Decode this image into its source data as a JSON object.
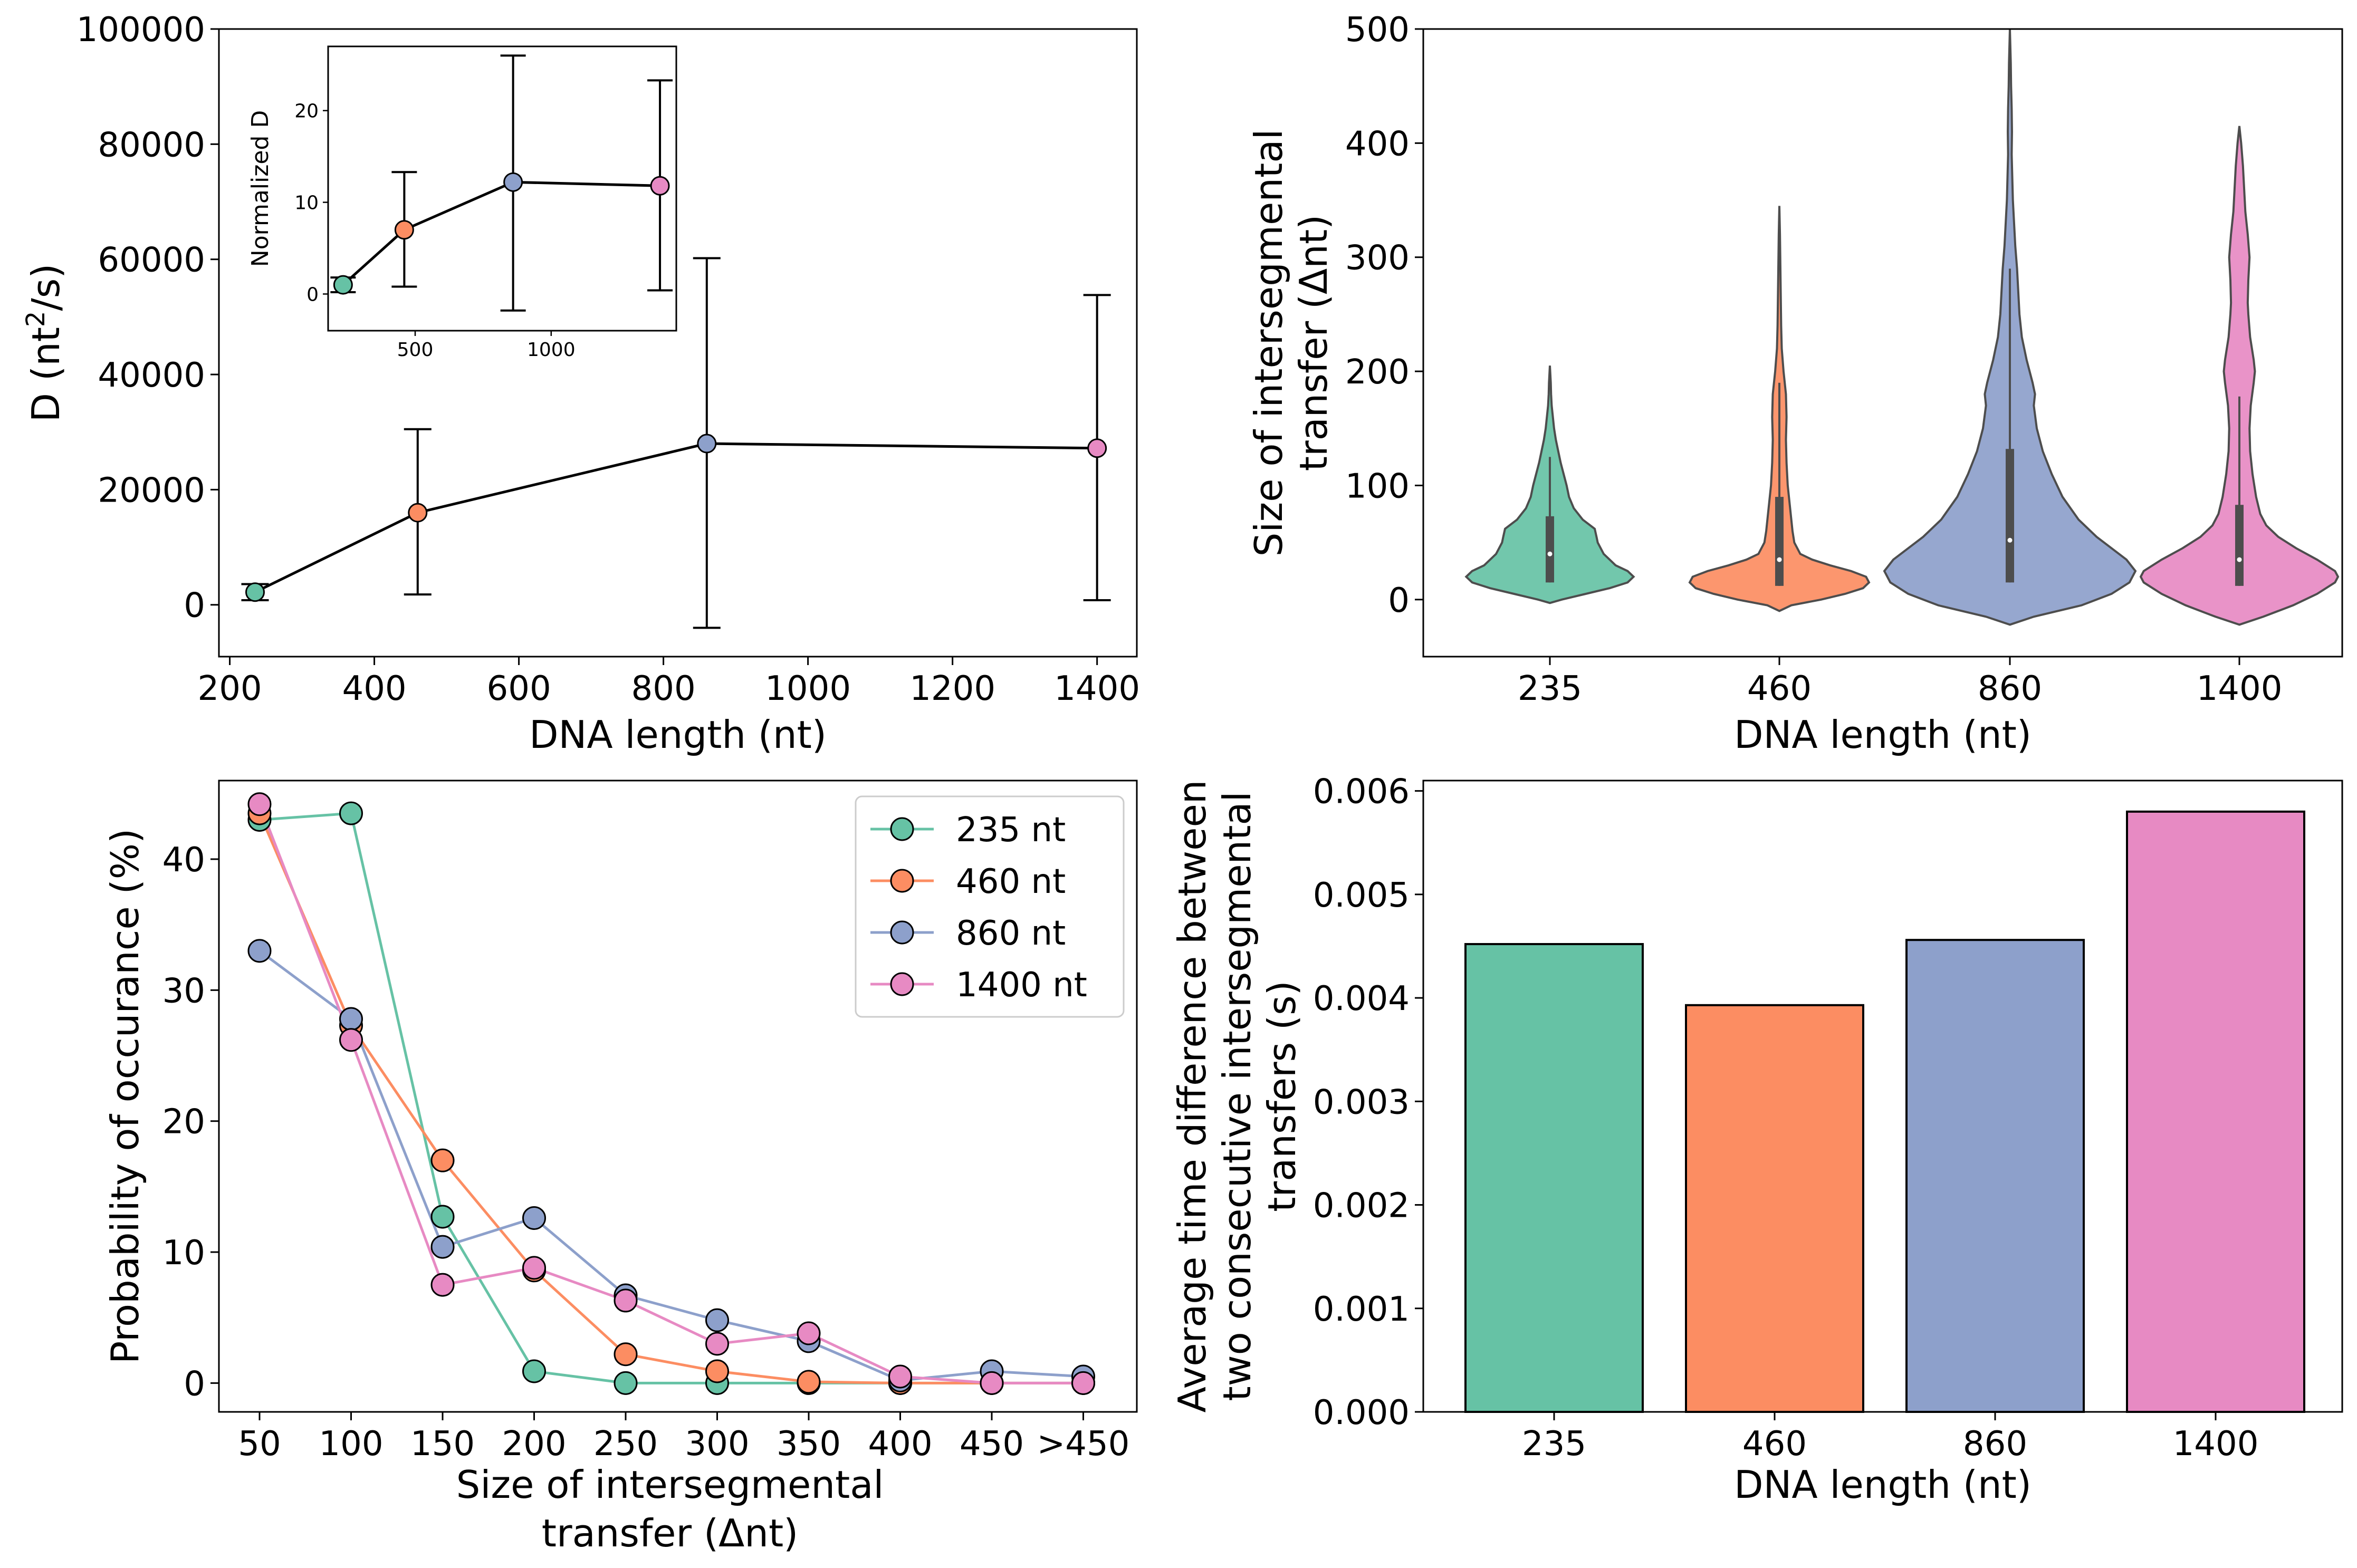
{
  "colors": {
    "c235": "#66c2a5",
    "c460": "#fc8d62",
    "c860": "#8da0cb",
    "c1400": "#e78ac3"
  },
  "chart_data": [
    {
      "id": "diffusion",
      "type": "line",
      "xlabel": "DNA length (nt)",
      "ylabel_main": "D (nt",
      "ylabel_sup": "2",
      "ylabel_tail": "/s)",
      "xlim": [
        185,
        1455
      ],
      "ylim": [
        -9000,
        100000
      ],
      "xticks": [
        200,
        400,
        600,
        800,
        1000,
        1200,
        1400
      ],
      "yticks": [
        0,
        20000,
        40000,
        60000,
        80000,
        100000
      ],
      "x": [
        235,
        460,
        860,
        1400
      ],
      "y": [
        2200,
        16000,
        28000,
        27200
      ],
      "err_low": [
        800,
        1800,
        -4000,
        800
      ],
      "err_high": [
        3600,
        30500,
        60200,
        53800
      ],
      "point_colors": [
        "#66c2a5",
        "#fc8d62",
        "#8da0cb",
        "#e78ac3"
      ],
      "inset": {
        "type": "line",
        "ylabel": "Normalized D",
        "xlim": [
          180,
          1460
        ],
        "ylim": [
          -4,
          27
        ],
        "xticks": [
          500,
          1000
        ],
        "yticks": [
          0,
          10,
          20
        ],
        "x": [
          235,
          460,
          860,
          1400
        ],
        "y": [
          1.0,
          7.0,
          12.2,
          11.8
        ],
        "err_low": [
          0.2,
          0.8,
          -1.8,
          0.4
        ],
        "err_high": [
          1.8,
          13.3,
          26.0,
          23.3
        ]
      }
    },
    {
      "id": "violin",
      "type": "violin",
      "xlabel": "DNA length (nt)",
      "ylabel_line1": "Size of intersegmental",
      "ylabel_line2": "transfer (Δnt)",
      "ylim": [
        -50,
        500
      ],
      "yticks": [
        0,
        100,
        200,
        300,
        400,
        500
      ],
      "categories": [
        "235",
        "460",
        "860",
        "1400"
      ],
      "series": [
        {
          "min": -3,
          "max": 205,
          "q1": 15,
          "median": 40,
          "q3": 73,
          "whisker_high": 125,
          "density": [
            [
              -3,
              0
            ],
            [
              0,
              20
            ],
            [
              5,
              60
            ],
            [
              10,
              100
            ],
            [
              15,
              130
            ],
            [
              20,
              140
            ],
            [
              25,
              130
            ],
            [
              30,
              110
            ],
            [
              40,
              90
            ],
            [
              50,
              80
            ],
            [
              55,
              78
            ],
            [
              62,
              75
            ],
            [
              70,
              55
            ],
            [
              80,
              40
            ],
            [
              90,
              32
            ],
            [
              100,
              28
            ],
            [
              110,
              23
            ],
            [
              120,
              18
            ],
            [
              130,
              14
            ],
            [
              140,
              10
            ],
            [
              150,
              7
            ],
            [
              160,
              5
            ],
            [
              170,
              3
            ],
            [
              180,
              2
            ],
            [
              190,
              1.5
            ],
            [
              205,
              0
            ]
          ]
        },
        {
          "min": -10,
          "max": 345,
          "q1": 12,
          "median": 35,
          "q3": 90,
          "whisker_high": 190,
          "density": [
            [
              -10,
              0
            ],
            [
              -5,
              20
            ],
            [
              0,
              70
            ],
            [
              5,
              110
            ],
            [
              10,
              140
            ],
            [
              15,
              150
            ],
            [
              20,
              145
            ],
            [
              25,
              120
            ],
            [
              30,
              85
            ],
            [
              35,
              55
            ],
            [
              40,
              35
            ],
            [
              50,
              25
            ],
            [
              60,
              22
            ],
            [
              80,
              18
            ],
            [
              100,
              14
            ],
            [
              120,
              12
            ],
            [
              140,
              11
            ],
            [
              160,
              12
            ],
            [
              180,
              11
            ],
            [
              200,
              7
            ],
            [
              220,
              4
            ],
            [
              240,
              3
            ],
            [
              260,
              2.5
            ],
            [
              280,
              2
            ],
            [
              300,
              1.5
            ],
            [
              320,
              1
            ],
            [
              345,
              0
            ]
          ]
        },
        {
          "min": -22,
          "max": 500,
          "q1": 15,
          "median": 52,
          "q3": 132,
          "whisker_high": 290,
          "density": [
            [
              -22,
              0
            ],
            [
              -15,
              40
            ],
            [
              -5,
              120
            ],
            [
              5,
              170
            ],
            [
              15,
              200
            ],
            [
              25,
              210
            ],
            [
              35,
              195
            ],
            [
              45,
              170
            ],
            [
              55,
              145
            ],
            [
              70,
              115
            ],
            [
              90,
              88
            ],
            [
              110,
              70
            ],
            [
              130,
              55
            ],
            [
              150,
              45
            ],
            [
              170,
              40
            ],
            [
              180,
              42
            ],
            [
              190,
              38
            ],
            [
              210,
              28
            ],
            [
              230,
              20
            ],
            [
              250,
              16
            ],
            [
              270,
              14
            ],
            [
              290,
              12
            ],
            [
              310,
              9
            ],
            [
              330,
              7
            ],
            [
              350,
              5
            ],
            [
              370,
              4
            ],
            [
              390,
              3
            ],
            [
              410,
              3.5
            ],
            [
              430,
              3
            ],
            [
              450,
              2
            ],
            [
              470,
              1.5
            ],
            [
              500,
              0
            ]
          ]
        },
        {
          "min": -22,
          "max": 415,
          "q1": 12,
          "median": 35,
          "q3": 83,
          "whisker_high": 178,
          "density": [
            [
              -22,
              0
            ],
            [
              -15,
              40
            ],
            [
              -5,
              90
            ],
            [
              5,
              130
            ],
            [
              15,
              160
            ],
            [
              20,
              165
            ],
            [
              25,
              160
            ],
            [
              35,
              130
            ],
            [
              45,
              95
            ],
            [
              55,
              65
            ],
            [
              65,
              45
            ],
            [
              75,
              35
            ],
            [
              90,
              28
            ],
            [
              110,
              22
            ],
            [
              130,
              18
            ],
            [
              150,
              17
            ],
            [
              170,
              19
            ],
            [
              190,
              24
            ],
            [
              200,
              26
            ],
            [
              210,
              24
            ],
            [
              230,
              18
            ],
            [
              250,
              15
            ],
            [
              260,
              14
            ],
            [
              280,
              15
            ],
            [
              300,
              17
            ],
            [
              320,
              14
            ],
            [
              340,
              10
            ],
            [
              360,
              8
            ],
            [
              380,
              6
            ],
            [
              400,
              3
            ],
            [
              415,
              0
            ]
          ]
        }
      ]
    },
    {
      "id": "probability",
      "type": "line",
      "xlabel_line1": "Size of intersegmental",
      "xlabel_line2": "transfer (Δnt)",
      "ylabel": "Probability of occurance (%)",
      "ylim": [
        -2.2,
        46
      ],
      "yticks": [
        0,
        10,
        20,
        30,
        40
      ],
      "categories": [
        "50",
        "100",
        "150",
        "200",
        "250",
        "300",
        "350",
        "400",
        "450",
        ">450"
      ],
      "legend_position": "upper-right",
      "series": [
        {
          "name": "235 nt",
          "values": [
            43.0,
            43.5,
            12.7,
            0.9,
            0.0,
            0.0,
            0.0,
            0.0,
            0.0,
            0.0
          ]
        },
        {
          "name": "460 nt",
          "values": [
            43.5,
            27.3,
            17.0,
            8.6,
            2.2,
            0.9,
            0.1,
            0.0,
            0.0,
            0.0
          ]
        },
        {
          "name": "860 nt",
          "values": [
            33.0,
            27.8,
            10.4,
            12.6,
            6.7,
            4.8,
            3.2,
            0.2,
            0.9,
            0.5
          ]
        },
        {
          "name": "1400 nt",
          "values": [
            44.2,
            26.2,
            7.5,
            8.8,
            6.3,
            3.0,
            3.8,
            0.5,
            0.0,
            0.0
          ]
        }
      ]
    },
    {
      "id": "timediff",
      "type": "bar",
      "xlabel": "DNA length (nt)",
      "ylabel_line1": "Average time difference between",
      "ylabel_line2": "two consecutive intersegmental",
      "ylabel_line3": "transfers (s)",
      "ylim": [
        0,
        0.0061
      ],
      "yticks": [
        0.0,
        0.001,
        0.002,
        0.003,
        0.004,
        0.005,
        0.006
      ],
      "ytick_labels": [
        "0.000",
        "0.001",
        "0.002",
        "0.003",
        "0.004",
        "0.005",
        "0.006"
      ],
      "categories": [
        "235",
        "460",
        "860",
        "1400"
      ],
      "values": [
        0.00452,
        0.00393,
        0.00456,
        0.0058
      ]
    }
  ]
}
